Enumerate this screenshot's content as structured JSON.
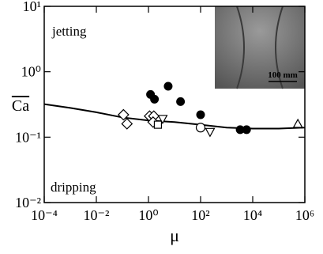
{
  "chart_data": {
    "type": "scatter",
    "x_label": "μ",
    "y_label": "Ca",
    "xlim": [
      0.0001,
      1000000
    ],
    "ylim": [
      0.01,
      10
    ],
    "log_x": true,
    "log_y": true,
    "xticks": [
      {
        "value": 0.0001,
        "label": "10⁻⁴"
      },
      {
        "value": 0.01,
        "label": "10⁻²"
      },
      {
        "value": 1,
        "label": "10⁰"
      },
      {
        "value": 100,
        "label": "10²"
      },
      {
        "value": 10000,
        "label": "10⁴"
      },
      {
        "value": 1000000,
        "label": "10⁶"
      }
    ],
    "yticks": [
      {
        "value": 0.01,
        "label": "10⁻²"
      },
      {
        "value": 0.1,
        "label": "10⁻¹"
      },
      {
        "value": 1,
        "label": "10⁰"
      },
      {
        "value": 10,
        "label": "10¹"
      }
    ],
    "annotations": [
      "jetting",
      "dripping"
    ],
    "inset_scale_label": "100 mm",
    "curve": {
      "color": "#000000",
      "x": [
        0.0001,
        0.001,
        0.01,
        0.1,
        1,
        10,
        100,
        1000,
        10000,
        100000,
        1000000
      ],
      "y": [
        0.32,
        0.28,
        0.24,
        0.2,
        0.18,
        0.17,
        0.155,
        0.14,
        0.135,
        0.135,
        0.14
      ]
    },
    "series": [
      {
        "marker": "circle-filled",
        "color": "#000000",
        "x": [
          1.2,
          1.7,
          5.7,
          17,
          100,
          3300,
          5800
        ],
        "values": [
          0.45,
          0.38,
          0.6,
          0.35,
          0.22,
          0.13,
          0.13
        ]
      },
      {
        "marker": "diamond",
        "color": "#000000",
        "x": [
          0.11,
          0.15,
          1.1,
          1.6,
          1.5
        ],
        "values": [
          0.22,
          0.16,
          0.21,
          0.21,
          0.17
        ]
      },
      {
        "marker": "square",
        "color": "#000000",
        "x": [
          2.3
        ],
        "values": [
          0.155
        ]
      },
      {
        "marker": "triangle-down",
        "color": "#000000",
        "x": [
          3.5,
          230
        ],
        "values": [
          0.19,
          0.12
        ]
      },
      {
        "marker": "circle",
        "color": "#000000",
        "x": [
          100
        ],
        "values": [
          0.14
        ]
      },
      {
        "marker": "triangle-up",
        "color": "#000000",
        "x": [
          540000
        ],
        "values": [
          0.16
        ]
      }
    ]
  }
}
